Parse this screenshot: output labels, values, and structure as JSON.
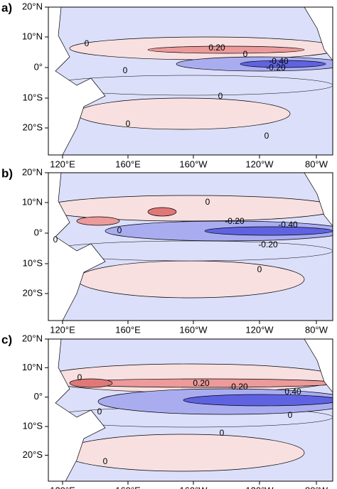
{
  "panels": [
    {
      "label": "a)",
      "contour_labels": [
        "0",
        "0.20",
        "0",
        "-0.40",
        "-0.20",
        "0",
        "0",
        "0",
        "0"
      ]
    },
    {
      "label": "b)",
      "contour_labels": [
        "0",
        "-0.20",
        "-0.40",
        "-0.20",
        "0",
        "0",
        "0"
      ]
    },
    {
      "label": "c)",
      "contour_labels": [
        "0",
        "0.20",
        "-0.20",
        "0.40",
        "0",
        "0",
        "0",
        "0"
      ]
    }
  ],
  "y_ticks": [
    "20°N",
    "10°N",
    "0°",
    "10°S",
    "20°S"
  ],
  "x_ticks": [
    "120°E",
    "160°E",
    "160°W",
    "120°W",
    "80°W"
  ]
}
